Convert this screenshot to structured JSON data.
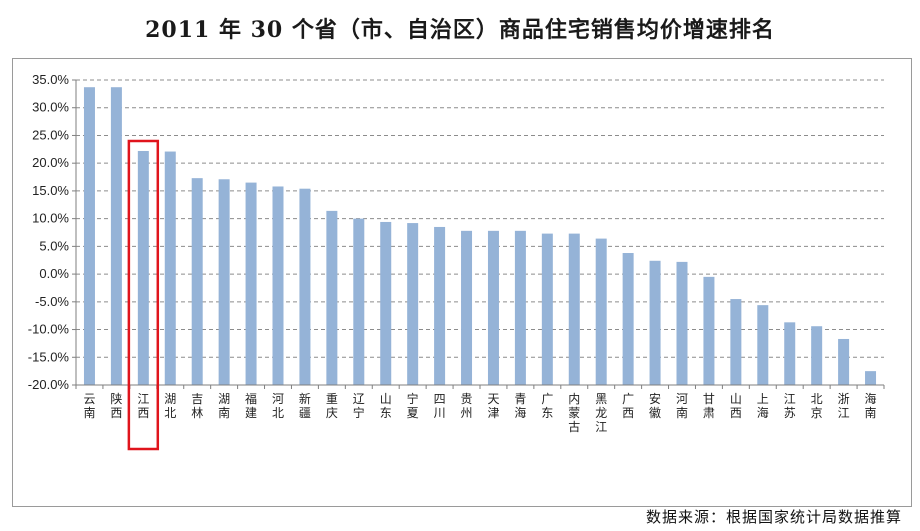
{
  "chart_data": {
    "type": "bar",
    "title": "2011 年 30 个省（市、自治区）商品住宅销售均价增速排名",
    "source": "数据来源：根据国家统计局数据推算",
    "categories": [
      "云南",
      "陕西",
      "江西",
      "湖北",
      "吉林",
      "湖南",
      "福建",
      "河北",
      "新疆",
      "重庆",
      "辽宁",
      "山东",
      "宁夏",
      "四川",
      "贵州",
      "天津",
      "青海",
      "广东",
      "内蒙古",
      "黑龙江",
      "广西",
      "安徽",
      "河南",
      "甘肃",
      "山西",
      "上海",
      "江苏",
      "北京",
      "浙江",
      "海南"
    ],
    "values": [
      33.7,
      33.7,
      22.2,
      22.1,
      17.3,
      17.1,
      16.5,
      15.8,
      15.4,
      11.4,
      10.0,
      9.4,
      9.2,
      8.5,
      7.8,
      7.8,
      7.8,
      7.3,
      7.3,
      6.4,
      3.8,
      2.4,
      2.2,
      -0.5,
      -4.5,
      -5.6,
      -8.7,
      -9.4,
      -11.7,
      -17.5
    ],
    "ylim": [
      -20,
      35
    ],
    "yticks": [
      "35.0%",
      "30.0%",
      "25.0%",
      "20.0%",
      "15.0%",
      "10.0%",
      "5.0%",
      "0.0%",
      "-5.0%",
      "-10.0%",
      "-15.0%",
      "-20.0%"
    ],
    "yunit": "%",
    "highlight_category": "江西",
    "grid": true,
    "colors": {
      "bar": "#95b3d7",
      "highlight_box": "#e0141c",
      "grid": "#8c8c8c",
      "axis": "#7f7f7f"
    }
  }
}
